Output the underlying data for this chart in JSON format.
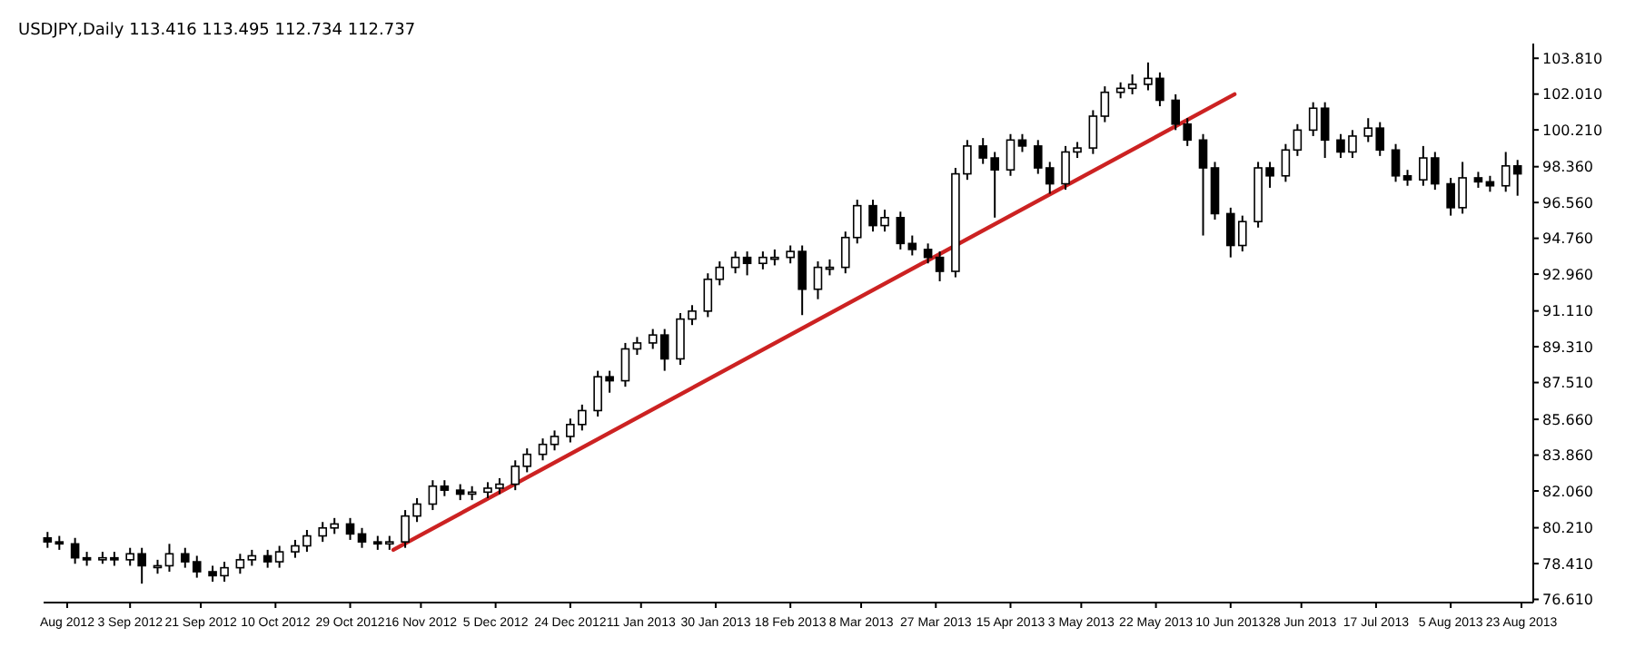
{
  "chart_data": {
    "type": "candlestick",
    "title": "USDJPY,Daily  113.416 113.495 112.734 112.737",
    "color": "#000000",
    "grid": false,
    "xlim": [
      "2012-08-12",
      "2013-08-26"
    ],
    "xticks": [
      {
        "value": "2012-08-18",
        "label": "Aug 2012"
      },
      {
        "value": "2012-09-03",
        "label": "3 Sep 2012"
      },
      {
        "value": "2012-09-21",
        "label": "21 Sep 2012"
      },
      {
        "value": "2012-10-10",
        "label": "10 Oct 2012"
      },
      {
        "value": "2012-10-29",
        "label": "29 Oct 2012"
      },
      {
        "value": "2012-11-16",
        "label": "16 Nov 2012"
      },
      {
        "value": "2012-12-05",
        "label": "5 Dec 2012"
      },
      {
        "value": "2012-12-24",
        "label": "24 Dec 2012"
      },
      {
        "value": "2013-01-11",
        "label": "11 Jan 2013"
      },
      {
        "value": "2013-01-30",
        "label": "30 Jan 2013"
      },
      {
        "value": "2013-02-18",
        "label": "18 Feb 2013"
      },
      {
        "value": "2013-03-08",
        "label": "8 Mar 2013"
      },
      {
        "value": "2013-03-27",
        "label": "27 Mar 2013"
      },
      {
        "value": "2013-04-15",
        "label": "15 Apr 2013"
      },
      {
        "value": "2013-05-03",
        "label": "3 May 2013"
      },
      {
        "value": "2013-05-22",
        "label": "22 May 2013"
      },
      {
        "value": "2013-06-10",
        "label": "10 Jun 2013"
      },
      {
        "value": "2013-06-28",
        "label": "28 Jun 2013"
      },
      {
        "value": "2013-07-17",
        "label": "17 Jul 2013"
      },
      {
        "value": "2013-08-05",
        "label": "5 Aug 2013"
      },
      {
        "value": "2013-08-23",
        "label": "23 Aug 2013"
      }
    ],
    "ylim": [
      76.45,
      104.55
    ],
    "yticks": [
      {
        "value": 76.61,
        "label": "76.610"
      },
      {
        "value": 78.41,
        "label": "78.410"
      },
      {
        "value": 80.21,
        "label": "80.210"
      },
      {
        "value": 82.06,
        "label": "82.060"
      },
      {
        "value": 83.86,
        "label": "83.860"
      },
      {
        "value": 85.66,
        "label": "85.660"
      },
      {
        "value": 87.51,
        "label": "87.510"
      },
      {
        "value": 89.31,
        "label": "89.310"
      },
      {
        "value": 91.11,
        "label": "91.110"
      },
      {
        "value": 92.96,
        "label": "92.960"
      },
      {
        "value": 94.76,
        "label": "94.760"
      },
      {
        "value": 96.56,
        "label": "96.560"
      },
      {
        "value": 98.36,
        "label": "98.360"
      },
      {
        "value": 100.21,
        "label": "100.210"
      },
      {
        "value": 102.01,
        "label": "102.010"
      },
      {
        "value": 103.81,
        "label": "103.810"
      }
    ],
    "x": [
      "2012-08-13",
      "2012-08-16",
      "2012-08-20",
      "2012-08-23",
      "2012-08-27",
      "2012-08-30",
      "2012-09-03",
      "2012-09-06",
      "2012-09-10",
      "2012-09-13",
      "2012-09-17",
      "2012-09-20",
      "2012-09-24",
      "2012-09-27",
      "2012-10-01",
      "2012-10-04",
      "2012-10-08",
      "2012-10-11",
      "2012-10-15",
      "2012-10-18",
      "2012-10-22",
      "2012-10-25",
      "2012-10-29",
      "2012-11-01",
      "2012-11-05",
      "2012-11-08",
      "2012-11-12",
      "2012-11-15",
      "2012-11-19",
      "2012-11-22",
      "2012-11-26",
      "2012-11-29",
      "2012-12-03",
      "2012-12-06",
      "2012-12-10",
      "2012-12-13",
      "2012-12-17",
      "2012-12-20",
      "2012-12-24",
      "2012-12-27",
      "2012-12-31",
      "2013-01-03",
      "2013-01-07",
      "2013-01-10",
      "2013-01-14",
      "2013-01-17",
      "2013-01-21",
      "2013-01-24",
      "2013-01-28",
      "2013-01-31",
      "2013-02-04",
      "2013-02-07",
      "2013-02-11",
      "2013-02-14",
      "2013-02-18",
      "2013-02-21",
      "2013-02-25",
      "2013-02-28",
      "2013-03-04",
      "2013-03-07",
      "2013-03-11",
      "2013-03-14",
      "2013-03-18",
      "2013-03-21",
      "2013-03-25",
      "2013-03-28",
      "2013-04-01",
      "2013-04-04",
      "2013-04-08",
      "2013-04-11",
      "2013-04-15",
      "2013-04-18",
      "2013-04-22",
      "2013-04-25",
      "2013-04-29",
      "2013-05-02",
      "2013-05-06",
      "2013-05-09",
      "2013-05-13",
      "2013-05-16",
      "2013-05-20",
      "2013-05-23",
      "2013-05-27",
      "2013-05-30",
      "2013-06-03",
      "2013-06-06",
      "2013-06-10",
      "2013-06-13",
      "2013-06-17",
      "2013-06-20",
      "2013-06-24",
      "2013-06-27",
      "2013-07-01",
      "2013-07-04",
      "2013-07-08",
      "2013-07-11",
      "2013-07-15",
      "2013-07-18",
      "2013-07-22",
      "2013-07-25",
      "2013-07-29",
      "2013-08-01",
      "2013-08-05",
      "2013-08-08",
      "2013-08-12",
      "2013-08-15",
      "2013-08-19",
      "2013-08-22"
    ],
    "ohlc": [
      [
        79.7,
        80.0,
        79.2,
        79.5
      ],
      [
        79.5,
        79.8,
        79.1,
        79.4
      ],
      [
        79.4,
        79.7,
        78.4,
        78.7
      ],
      [
        78.7,
        79.0,
        78.3,
        78.6
      ],
      [
        78.6,
        79.0,
        78.4,
        78.7
      ],
      [
        78.7,
        79.0,
        78.3,
        78.6
      ],
      [
        78.6,
        79.2,
        78.3,
        78.9
      ],
      [
        78.9,
        79.2,
        77.4,
        78.3
      ],
      [
        78.3,
        78.6,
        77.9,
        78.3
      ],
      [
        78.3,
        79.4,
        78.0,
        78.9
      ],
      [
        78.9,
        79.2,
        78.2,
        78.5
      ],
      [
        78.5,
        78.8,
        77.7,
        78.0
      ],
      [
        78.0,
        78.3,
        77.5,
        77.8
      ],
      [
        77.8,
        78.5,
        77.5,
        78.2
      ],
      [
        78.2,
        78.9,
        77.9,
        78.6
      ],
      [
        78.6,
        79.1,
        78.3,
        78.8
      ],
      [
        78.8,
        79.1,
        78.2,
        78.5
      ],
      [
        78.5,
        79.3,
        78.2,
        79.0
      ],
      [
        79.0,
        79.6,
        78.7,
        79.3
      ],
      [
        79.3,
        80.1,
        79.0,
        79.8
      ],
      [
        79.8,
        80.5,
        79.5,
        80.2
      ],
      [
        80.2,
        80.7,
        79.9,
        80.4
      ],
      [
        80.4,
        80.7,
        79.6,
        79.9
      ],
      [
        79.9,
        80.2,
        79.2,
        79.5
      ],
      [
        79.5,
        79.8,
        79.1,
        79.4
      ],
      [
        79.4,
        79.8,
        79.1,
        79.5
      ],
      [
        79.5,
        81.1,
        79.2,
        80.8
      ],
      [
        80.8,
        81.7,
        80.5,
        81.4
      ],
      [
        81.4,
        82.6,
        81.1,
        82.3
      ],
      [
        82.3,
        82.6,
        81.8,
        82.1
      ],
      [
        82.1,
        82.4,
        81.6,
        81.9
      ],
      [
        81.9,
        82.3,
        81.6,
        82.0
      ],
      [
        82.0,
        82.5,
        81.7,
        82.2
      ],
      [
        82.2,
        82.7,
        81.9,
        82.4
      ],
      [
        82.4,
        83.6,
        82.1,
        83.3
      ],
      [
        83.3,
        84.2,
        83.0,
        83.9
      ],
      [
        83.9,
        84.7,
        83.6,
        84.4
      ],
      [
        84.4,
        85.1,
        84.1,
        84.8
      ],
      [
        84.8,
        85.7,
        84.5,
        85.4
      ],
      [
        85.4,
        86.4,
        85.1,
        86.1
      ],
      [
        86.1,
        88.1,
        85.8,
        87.8
      ],
      [
        87.8,
        88.1,
        87.0,
        87.6
      ],
      [
        87.6,
        89.5,
        87.3,
        89.2
      ],
      [
        89.2,
        89.8,
        88.9,
        89.5
      ],
      [
        89.5,
        90.2,
        89.2,
        89.9
      ],
      [
        89.9,
        90.2,
        88.1,
        88.7
      ],
      [
        88.7,
        91.0,
        88.4,
        90.7
      ],
      [
        90.7,
        91.4,
        90.4,
        91.1
      ],
      [
        91.1,
        93.0,
        90.8,
        92.7
      ],
      [
        92.7,
        93.6,
        92.4,
        93.3
      ],
      [
        93.3,
        94.1,
        93.0,
        93.8
      ],
      [
        93.8,
        94.1,
        92.9,
        93.5
      ],
      [
        93.5,
        94.1,
        93.2,
        93.8
      ],
      [
        93.8,
        94.2,
        93.4,
        93.8
      ],
      [
        93.8,
        94.4,
        93.5,
        94.1
      ],
      [
        94.1,
        94.4,
        90.9,
        92.2
      ],
      [
        92.2,
        93.6,
        91.7,
        93.3
      ],
      [
        93.3,
        93.7,
        92.9,
        93.3
      ],
      [
        93.3,
        95.1,
        93.0,
        94.8
      ],
      [
        94.8,
        96.7,
        94.5,
        96.4
      ],
      [
        96.4,
        96.7,
        95.1,
        95.4
      ],
      [
        95.4,
        96.2,
        95.1,
        95.8
      ],
      [
        95.8,
        96.1,
        94.2,
        94.5
      ],
      [
        94.5,
        94.9,
        93.9,
        94.2
      ],
      [
        94.2,
        94.5,
        93.5,
        93.8
      ],
      [
        93.8,
        94.1,
        92.6,
        93.1
      ],
      [
        93.1,
        98.3,
        92.8,
        98.0
      ],
      [
        98.0,
        99.7,
        97.7,
        99.4
      ],
      [
        99.4,
        99.8,
        98.5,
        98.8
      ],
      [
        98.8,
        99.1,
        95.8,
        98.2
      ],
      [
        98.2,
        100.0,
        97.9,
        99.7
      ],
      [
        99.7,
        100.0,
        99.1,
        99.4
      ],
      [
        99.4,
        99.7,
        98.0,
        98.3
      ],
      [
        98.3,
        98.6,
        97.0,
        97.5
      ],
      [
        97.5,
        99.4,
        97.2,
        99.1
      ],
      [
        99.1,
        99.6,
        98.8,
        99.3
      ],
      [
        99.3,
        101.2,
        99.0,
        100.9
      ],
      [
        100.9,
        102.4,
        100.6,
        102.1
      ],
      [
        102.1,
        102.6,
        101.8,
        102.3
      ],
      [
        102.3,
        103.0,
        102.0,
        102.5
      ],
      [
        102.5,
        103.6,
        102.2,
        102.8
      ],
      [
        102.8,
        103.1,
        101.4,
        101.7
      ],
      [
        101.7,
        102.0,
        100.2,
        100.5
      ],
      [
        100.5,
        100.8,
        99.4,
        99.7
      ],
      [
        99.7,
        100.0,
        94.9,
        98.3
      ],
      [
        98.3,
        98.6,
        95.7,
        96.0
      ],
      [
        96.0,
        96.3,
        93.8,
        94.4
      ],
      [
        94.4,
        95.9,
        94.1,
        95.6
      ],
      [
        95.6,
        98.6,
        95.3,
        98.3
      ],
      [
        98.3,
        98.6,
        97.3,
        97.9
      ],
      [
        97.9,
        99.5,
        97.6,
        99.2
      ],
      [
        99.2,
        100.5,
        98.9,
        100.2
      ],
      [
        100.2,
        101.6,
        99.9,
        101.3
      ],
      [
        101.3,
        101.6,
        98.8,
        99.7
      ],
      [
        99.7,
        100.0,
        98.8,
        99.1
      ],
      [
        99.1,
        100.2,
        98.8,
        99.9
      ],
      [
        99.9,
        100.8,
        99.6,
        100.3
      ],
      [
        100.3,
        100.6,
        98.9,
        99.2
      ],
      [
        99.2,
        99.5,
        97.6,
        97.9
      ],
      [
        97.9,
        98.2,
        97.4,
        97.7
      ],
      [
        97.7,
        99.4,
        97.4,
        98.8
      ],
      [
        98.8,
        99.1,
        97.2,
        97.5
      ],
      [
        97.5,
        97.8,
        95.9,
        96.3
      ],
      [
        96.3,
        98.6,
        96.0,
        97.8
      ],
      [
        97.8,
        98.1,
        97.3,
        97.6
      ],
      [
        97.6,
        97.9,
        97.1,
        97.4
      ],
      [
        97.4,
        99.1,
        97.1,
        98.4
      ],
      [
        98.4,
        98.7,
        96.9,
        98.0
      ]
    ],
    "series": [
      {
        "type": "line",
        "x": [
          "2012-11-09",
          "2013-06-11"
        ],
        "values": [
          79.1,
          102.0
        ],
        "color": "#cc2222"
      }
    ]
  }
}
